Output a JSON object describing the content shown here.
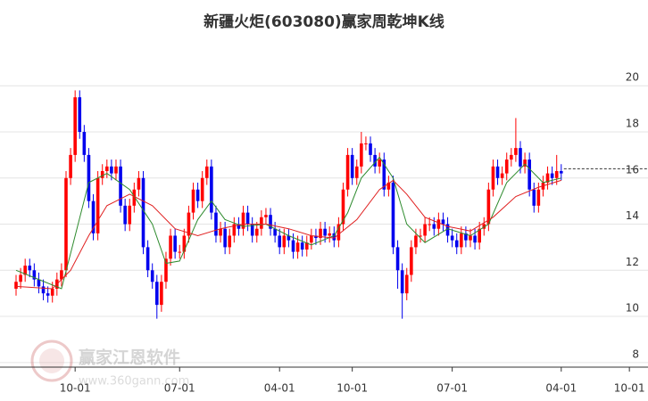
{
  "chart_data": {
    "type": "candlestick",
    "title": "新疆火炬(603080)赢家周乾坤K线",
    "categories": [
      null,
      null,
      null,
      null,
      null,
      null,
      null,
      null,
      null,
      null,
      null,
      null,
      null,
      "10-01",
      null,
      null,
      null,
      null,
      null,
      null,
      null,
      null,
      null,
      null,
      null,
      null,
      null,
      null,
      null,
      null,
      null,
      null,
      null,
      null,
      null,
      null,
      "07-01",
      null,
      null,
      null,
      null,
      null,
      null,
      null,
      null,
      null,
      null,
      null,
      null,
      null,
      null,
      null,
      null,
      null,
      null,
      null,
      null,
      null,
      "04-01",
      null,
      null,
      null,
      null,
      null,
      null,
      null,
      null,
      null,
      null,
      null,
      null,
      null,
      null,
      null,
      "10-01",
      null,
      null,
      null,
      null,
      null,
      null,
      null,
      null,
      null,
      null,
      null,
      null,
      null,
      null,
      null,
      null,
      null,
      null,
      null,
      null,
      null,
      "07-01",
      null,
      null,
      null,
      null,
      null,
      null,
      null,
      null,
      null,
      null,
      null,
      null,
      null,
      null,
      null,
      null,
      null,
      null,
      null,
      null,
      null,
      null,
      null,
      "04-01",
      null,
      null,
      null,
      null,
      null,
      null,
      null,
      null,
      null,
      null,
      null,
      null,
      null,
      null,
      "10-01"
    ],
    "open": [
      11.2,
      11.5,
      11.8,
      12.2,
      12.0,
      11.6,
      11.3,
      11.0,
      10.9,
      11.2,
      11.6,
      12.0,
      16.0,
      17.0,
      19.5,
      18.0,
      17.0,
      15.0,
      13.6,
      16.0,
      16.3,
      16.5,
      16.2,
      16.5,
      14.8,
      14.0,
      14.8,
      15.5,
      16.0,
      13.0,
      12.0,
      11.5,
      10.5,
      11.5,
      12.5,
      13.5,
      12.8,
      12.8,
      13.5,
      14.5,
      15.5,
      15.0,
      16.0,
      16.5,
      14.5,
      13.5,
      13.8,
      13.0,
      13.5,
      14.0,
      13.8,
      14.5,
      14.0,
      13.5,
      13.8,
      14.3,
      14.4,
      13.8,
      13.5,
      13.0,
      13.5,
      13.3,
      12.8,
      13.2,
      12.9,
      13.2,
      13.5,
      13.4,
      13.8,
      13.5,
      13.6,
      13.3,
      14.0,
      15.5,
      17.0,
      16.0,
      16.5,
      17.5,
      17.5,
      17.0,
      16.5,
      16.8,
      15.5,
      15.8,
      13.0,
      12.0,
      11.0,
      11.8,
      13.0,
      13.5,
      13.5,
      14.0,
      14.0,
      13.8,
      14.2,
      14.0,
      13.5,
      13.3,
      13.0,
      13.6,
      13.3,
      13.5,
      13.2,
      13.8,
      14.0,
      15.5,
      16.5,
      16.0,
      16.2,
      16.8,
      17.0,
      17.3,
      16.5,
      16.8,
      15.5,
      14.8,
      15.5,
      15.8,
      16.2,
      16.0,
      16.3,
      null,
      null,
      null,
      null,
      null,
      null,
      null,
      null,
      null,
      null,
      null,
      null,
      null,
      null,
      null
    ],
    "high": [
      11.8,
      12.1,
      12.5,
      12.5,
      12.3,
      11.9,
      11.6,
      11.3,
      11.5,
      11.9,
      12.3,
      16.3,
      17.3,
      19.8,
      19.8,
      18.3,
      17.3,
      15.3,
      16.3,
      16.6,
      16.8,
      16.8,
      16.8,
      16.8,
      15.1,
      15.1,
      15.8,
      16.3,
      16.3,
      13.3,
      12.3,
      11.8,
      11.8,
      12.8,
      13.8,
      13.8,
      13.1,
      13.8,
      14.8,
      15.8,
      15.8,
      16.3,
      16.8,
      16.8,
      14.8,
      14.1,
      14.1,
      13.8,
      14.3,
      14.3,
      14.8,
      14.8,
      14.3,
      14.1,
      14.6,
      14.7,
      14.7,
      14.1,
      13.8,
      13.8,
      13.8,
      13.6,
      13.5,
      13.5,
      13.5,
      13.8,
      13.8,
      14.1,
      14.1,
      13.9,
      13.9,
      14.3,
      15.8,
      17.3,
      17.3,
      16.8,
      18.0,
      17.8,
      17.8,
      17.3,
      17.1,
      17.1,
      16.1,
      16.1,
      13.3,
      12.3,
      12.1,
      13.3,
      13.8,
      13.8,
      14.3,
      14.3,
      14.3,
      14.5,
      14.5,
      14.3,
      13.8,
      13.6,
      13.9,
      13.9,
      13.8,
      13.8,
      14.1,
      14.3,
      15.8,
      16.8,
      16.8,
      16.5,
      17.1,
      17.3,
      18.6,
      17.6,
      17.1,
      17.1,
      15.8,
      15.8,
      16.1,
      16.5,
      16.5,
      17.0,
      16.6,
      null,
      null,
      null,
      null,
      null,
      null,
      null,
      null,
      null,
      null,
      null,
      null,
      null,
      null,
      null
    ],
    "low": [
      10.9,
      11.2,
      11.5,
      11.7,
      11.3,
      11.0,
      10.7,
      10.6,
      10.6,
      10.9,
      11.3,
      11.7,
      15.7,
      16.7,
      17.7,
      16.7,
      14.7,
      13.3,
      13.3,
      15.7,
      16.0,
      15.9,
      15.9,
      14.5,
      13.7,
      13.7,
      14.5,
      15.2,
      12.7,
      11.7,
      11.2,
      9.9,
      10.2,
      11.2,
      12.2,
      12.5,
      12.5,
      12.5,
      13.2,
      14.2,
      14.7,
      14.7,
      15.7,
      14.2,
      13.2,
      13.2,
      12.7,
      12.7,
      13.2,
      13.5,
      13.5,
      13.7,
      13.2,
      13.2,
      13.5,
      14.0,
      13.5,
      13.2,
      12.7,
      12.7,
      13.0,
      12.5,
      12.5,
      12.6,
      12.6,
      12.9,
      13.1,
      13.1,
      13.2,
      13.2,
      13.0,
      13.0,
      13.7,
      15.2,
      15.7,
      15.7,
      16.2,
      17.2,
      16.7,
      16.2,
      16.2,
      15.2,
      15.2,
      12.7,
      11.2,
      9.9,
      10.7,
      11.5,
      12.7,
      13.2,
      13.2,
      13.7,
      13.5,
      13.5,
      13.7,
      13.2,
      13.0,
      12.7,
      12.7,
      13.0,
      13.0,
      12.9,
      12.9,
      13.5,
      13.7,
      15.2,
      15.7,
      15.7,
      15.9,
      16.5,
      16.7,
      16.2,
      16.2,
      15.2,
      14.5,
      14.5,
      15.2,
      15.5,
      15.7,
      15.7,
      15.9,
      null,
      null,
      null,
      null,
      null,
      null,
      null,
      null,
      null,
      null,
      null,
      null,
      null,
      null,
      null
    ],
    "close": [
      11.5,
      11.8,
      12.2,
      12.0,
      11.6,
      11.3,
      11.0,
      10.9,
      11.2,
      11.6,
      12.0,
      16.0,
      17.0,
      19.5,
      18.0,
      17.0,
      15.0,
      13.6,
      16.0,
      16.3,
      16.5,
      16.2,
      16.5,
      14.8,
      14.0,
      14.8,
      15.5,
      16.0,
      13.0,
      12.0,
      11.5,
      10.5,
      11.5,
      12.5,
      13.5,
      12.8,
      12.8,
      13.5,
      14.5,
      15.5,
      15.0,
      16.0,
      16.5,
      14.5,
      13.5,
      13.8,
      13.0,
      13.5,
      14.0,
      13.8,
      14.5,
      14.0,
      13.5,
      13.8,
      14.3,
      14.4,
      13.8,
      13.5,
      13.0,
      13.5,
      13.3,
      12.8,
      13.2,
      12.9,
      13.2,
      13.5,
      13.4,
      13.8,
      13.5,
      13.6,
      13.3,
      14.0,
      15.5,
      17.0,
      16.0,
      16.5,
      17.5,
      17.5,
      17.0,
      16.5,
      16.8,
      15.5,
      15.8,
      13.0,
      12.0,
      11.0,
      11.8,
      13.0,
      13.5,
      13.5,
      14.0,
      14.0,
      13.8,
      14.2,
      14.0,
      13.5,
      13.3,
      13.0,
      13.6,
      13.3,
      13.5,
      13.2,
      13.8,
      14.0,
      15.5,
      16.5,
      16.0,
      16.2,
      16.8,
      17.0,
      17.3,
      16.5,
      16.8,
      15.5,
      14.8,
      15.5,
      15.8,
      16.2,
      16.0,
      16.3,
      16.2,
      null,
      null,
      null,
      null,
      null,
      null,
      null,
      null,
      null,
      null,
      null,
      null,
      null,
      null,
      null
    ],
    "up_color": "#ff0000",
    "down_color": "#0000ee",
    "lines": [
      {
        "color": "#2e8b2e",
        "x": [
          0,
          5,
          10,
          13,
          16,
          20,
          25,
          30,
          33,
          36,
          40,
          43,
          46,
          50,
          55,
          60,
          65,
          70,
          73,
          76,
          80,
          83,
          86,
          90,
          95,
          100,
          104,
          108,
          112,
          116,
          120
        ],
        "values": [
          12.0,
          11.6,
          11.2,
          13.5,
          15.8,
          16.2,
          15.5,
          14.0,
          12.3,
          12.4,
          14.2,
          15.0,
          14.2,
          13.9,
          14.0,
          13.5,
          13.1,
          13.5,
          14.5,
          16.0,
          16.9,
          16.0,
          14.0,
          13.2,
          13.8,
          13.5,
          14.0,
          15.8,
          16.6,
          15.8,
          16.0
        ]
      },
      {
        "color": "#e02020",
        "x": [
          0,
          8,
          12,
          16,
          20,
          25,
          30,
          35,
          40,
          45,
          50,
          55,
          60,
          65,
          70,
          75,
          80,
          83,
          86,
          90,
          95,
          100,
          105,
          110,
          115,
          120
        ],
        "values": [
          11.3,
          11.2,
          12.0,
          13.5,
          14.8,
          15.3,
          14.8,
          13.8,
          13.5,
          13.8,
          14.0,
          14.0,
          13.8,
          13.5,
          13.4,
          14.2,
          15.5,
          15.9,
          15.3,
          14.3,
          13.9,
          13.7,
          14.3,
          15.2,
          15.6,
          15.9
        ]
      }
    ],
    "last_price_line": 16.4,
    "ylim": [
      7.8,
      21.4
    ],
    "yticks": [
      8,
      10,
      12,
      14,
      16,
      18,
      20
    ],
    "grid": true,
    "watermark": {
      "name": "赢家江恩软件",
      "url": "www.360gann.com"
    }
  }
}
